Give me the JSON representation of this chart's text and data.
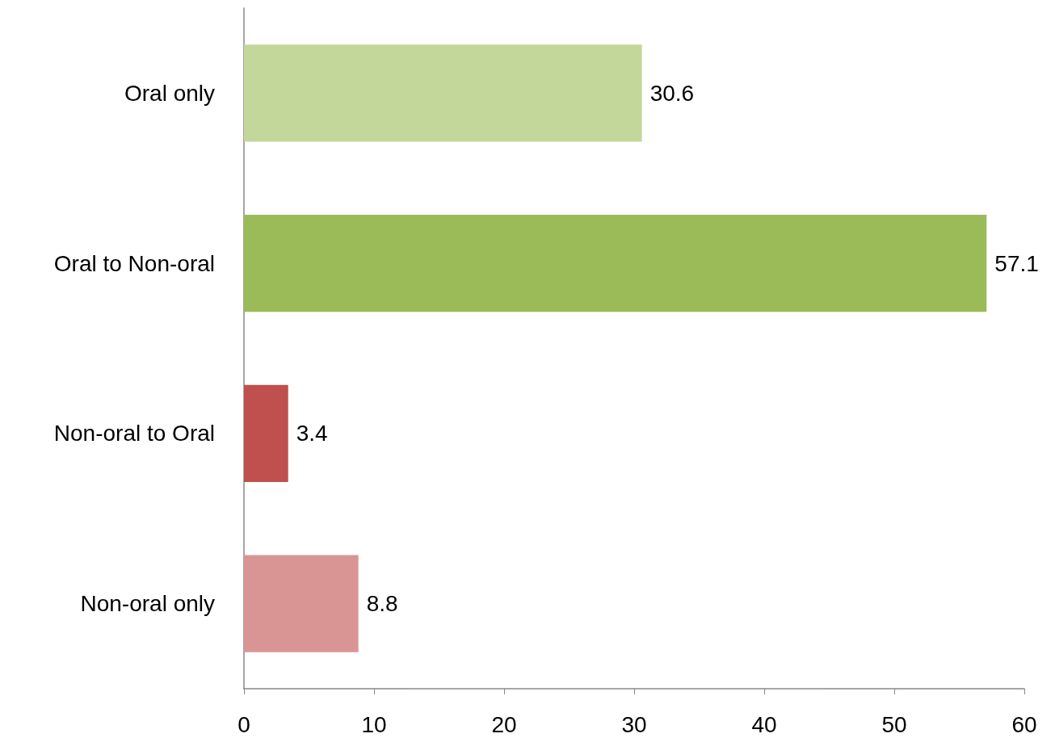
{
  "chart_data": {
    "type": "bar",
    "orientation": "horizontal",
    "categories": [
      "Oral only",
      "Oral to Non-oral",
      "Non-oral to Oral",
      "Non-oral only"
    ],
    "values": [
      30.6,
      57.1,
      3.4,
      8.8
    ],
    "colors": [
      "#c4d79b",
      "#9bbb59",
      "#c0504d",
      "#d99594"
    ],
    "xlim": [
      0,
      60
    ],
    "xticks": [
      0,
      10,
      20,
      30,
      40,
      50,
      60
    ],
    "data_labels": true
  }
}
